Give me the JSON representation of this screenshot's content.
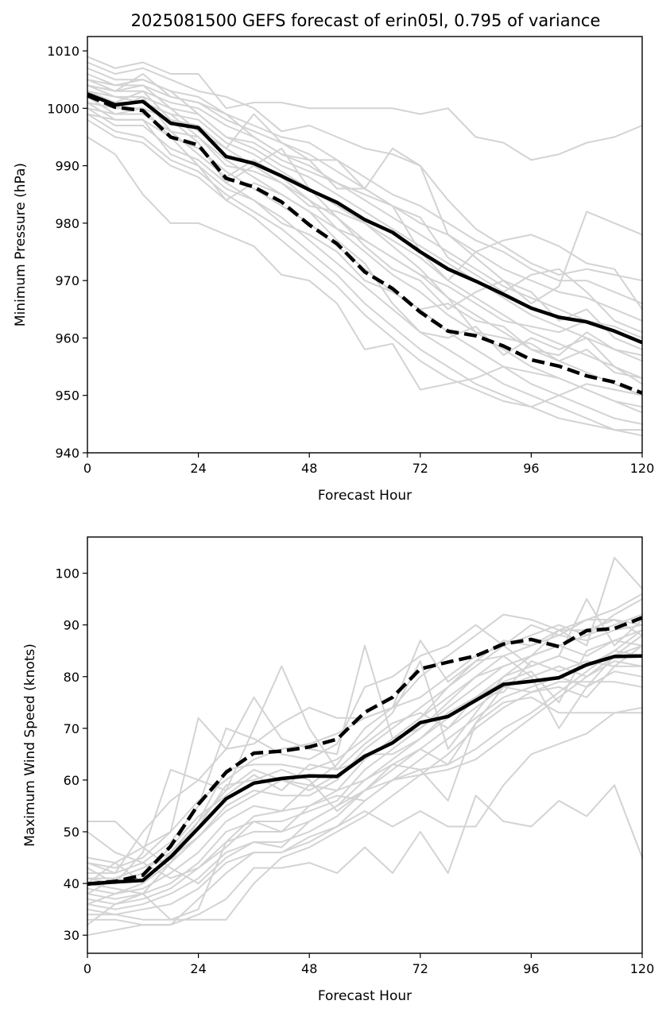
{
  "figure": {
    "title": "2025081500 GEFS forecast of erin05l, 0.795 of variance"
  },
  "colors": {
    "member": "#d3d3d3",
    "mean": "#000000",
    "frame": "#000000"
  },
  "chart_data": [
    {
      "type": "line",
      "title": "2025081500 GEFS forecast of erin05l, 0.795 of variance",
      "xlabel": "Forecast Hour",
      "ylabel": "Minimum Pressure (hPa)",
      "xlim": [
        0,
        120
      ],
      "ylim": [
        940,
        1012.5
      ],
      "x_ticks": [
        0,
        24,
        48,
        72,
        96,
        120
      ],
      "y_ticks": [
        940,
        950,
        960,
        970,
        980,
        990,
        1000,
        1010
      ],
      "grid": false,
      "legend": "none",
      "x": [
        0,
        6,
        12,
        18,
        24,
        30,
        36,
        42,
        48,
        54,
        60,
        66,
        72,
        78,
        84,
        90,
        96,
        102,
        108,
        114,
        120
      ],
      "mean_series": [
        {
          "style": "solid",
          "values": [
            1002.5,
            1000.6,
            1001.2,
            997.4,
            996.6,
            991.6,
            990.4,
            988.2,
            985.8,
            983.6,
            980.6,
            978.4,
            975.0,
            972.0,
            969.9,
            967.6,
            965.2,
            963.6,
            962.8,
            961.2,
            959.2
          ]
        },
        {
          "style": "dashed",
          "values": [
            1002.2,
            1000.2,
            999.6,
            995.0,
            993.6,
            987.8,
            986.3,
            983.7,
            979.7,
            976.4,
            971.5,
            968.6,
            964.5,
            961.2,
            960.4,
            958.6,
            956.2,
            955.1,
            953.4,
            952.3,
            950.4
          ]
        }
      ],
      "members": [
        [
          1009,
          1007,
          1008,
          1006,
          1006,
          1000,
          1001,
          1001,
          1000,
          1000,
          1000,
          1000,
          999,
          1000,
          995,
          994,
          991,
          992,
          994,
          995,
          997
        ],
        [
          1008,
          1006,
          1007,
          1005,
          1003,
          1002,
          1000,
          996,
          997,
          995,
          993,
          992,
          990,
          984,
          979,
          976,
          973,
          971,
          972,
          971,
          970
        ],
        [
          1007,
          1005,
          1005,
          1003,
          1002,
          999,
          997,
          995,
          994,
          991,
          988,
          985,
          983,
          980,
          977,
          975,
          972,
          970,
          970,
          968,
          966
        ],
        [
          1006,
          1004,
          1004,
          1002,
          1001,
          998,
          996,
          994,
          992,
          989,
          986,
          983,
          980,
          978,
          975,
          972,
          970,
          968,
          967,
          965,
          963
        ],
        [
          1005,
          1003,
          1003,
          1001,
          1000,
          997,
          995,
          992,
          990,
          987,
          984,
          981,
          978,
          975,
          972,
          969,
          967,
          965,
          963,
          961,
          959
        ],
        [
          1004,
          1002,
          1002,
          1000,
          999,
          995,
          993,
          990,
          988,
          985,
          982,
          979,
          976,
          973,
          970,
          967,
          964,
          962,
          960,
          958,
          956
        ],
        [
          1003,
          1001,
          1001,
          999,
          998,
          994,
          992,
          989,
          986,
          983,
          980,
          977,
          974,
          970,
          967,
          964,
          961,
          959,
          957,
          955,
          953
        ],
        [
          1003,
          1000,
          1000,
          998,
          997,
          993,
          990,
          987,
          984,
          981,
          977,
          974,
          971,
          967,
          964,
          961,
          958,
          956,
          954,
          952,
          950
        ],
        [
          1002,
          999,
          999,
          996,
          995,
          991,
          988,
          985,
          982,
          979,
          975,
          971,
          968,
          964,
          961,
          958,
          955,
          953,
          951,
          949,
          948
        ],
        [
          1001,
          998,
          998,
          995,
          993,
          989,
          986,
          983,
          980,
          976,
          972,
          968,
          965,
          961,
          958,
          955,
          952,
          950,
          948,
          946,
          945
        ],
        [
          1000,
          997,
          997,
          993,
          991,
          987,
          984,
          981,
          977,
          973,
          969,
          965,
          961,
          958,
          955,
          952,
          950,
          948,
          946,
          944,
          943
        ],
        [
          999,
          996,
          995,
          991,
          989,
          985,
          982,
          979,
          975,
          971,
          966,
          962,
          958,
          955,
          952,
          950,
          948,
          946,
          945,
          944,
          944
        ],
        [
          998,
          995,
          994,
          990,
          988,
          984,
          981,
          977,
          973,
          969,
          964,
          960,
          956,
          953,
          951,
          949,
          948,
          950,
          952,
          951,
          950
        ],
        [
          995,
          992,
          985,
          980,
          980,
          978,
          976,
          971,
          970,
          966,
          958,
          959,
          951,
          952,
          953,
          955,
          954,
          953,
          951,
          949,
          947
        ],
        [
          1004,
          1003,
          1006,
          1002,
          1001,
          999,
          995,
          992,
          991,
          991,
          986,
          993,
          990,
          978,
          974,
          970,
          966,
          969,
          982,
          980,
          978
        ],
        [
          1004,
          1003,
          1004,
          1000,
          996,
          993,
          999,
          994,
          991,
          986,
          986,
          983,
          975,
          970,
          975,
          977,
          978,
          976,
          973,
          972,
          965
        ],
        [
          1002,
          1001,
          1003,
          998,
          994,
          987,
          990,
          993,
          986,
          981,
          976,
          972,
          970,
          965,
          968,
          970,
          968,
          963,
          965,
          960,
          958
        ],
        [
          1000,
          999,
          1000,
          995,
          990,
          984,
          987,
          985,
          982,
          977,
          973,
          966,
          961,
          960,
          962,
          957,
          960,
          958,
          960,
          955,
          952
        ],
        [
          999,
          998,
          998,
          992,
          990,
          986,
          984,
          980,
          978,
          975,
          970,
          968,
          965,
          966,
          963,
          962,
          958,
          957,
          961,
          958,
          957
        ],
        [
          1001,
          1000,
          1002,
          996,
          992,
          988,
          991,
          988,
          984,
          979,
          977,
          974,
          971,
          969,
          966,
          963,
          962,
          961,
          963,
          962,
          960
        ],
        [
          1005,
          1004,
          1005,
          1003,
          999,
          995,
          994,
          991,
          989,
          987,
          985,
          983,
          981,
          974,
          971,
          968,
          971,
          972,
          968,
          963,
          961
        ],
        [
          1003,
          1002,
          1001,
          999,
          995,
          990,
          989,
          987,
          983,
          982,
          980,
          976,
          972,
          967,
          961,
          960,
          959,
          956,
          958,
          954,
          953
        ]
      ]
    },
    {
      "type": "line",
      "title": "",
      "xlabel": "Forecast Hour",
      "ylabel": "Maximum Wind Speed (knots)",
      "xlim": [
        0,
        120
      ],
      "ylim": [
        26.5,
        107
      ],
      "x_ticks": [
        0,
        24,
        48,
        72,
        96,
        120
      ],
      "y_ticks": [
        30,
        40,
        50,
        60,
        70,
        80,
        90,
        100
      ],
      "grid": false,
      "legend": "none",
      "x": [
        0,
        6,
        12,
        18,
        24,
        30,
        36,
        42,
        48,
        54,
        60,
        66,
        72,
        78,
        84,
        90,
        96,
        102,
        108,
        114,
        120
      ],
      "mean_series": [
        {
          "style": "solid",
          "values": [
            39.9,
            40.3,
            40.6,
            45.1,
            50.7,
            56.4,
            59.4,
            60.3,
            60.8,
            60.7,
            64.6,
            67.2,
            71.1,
            72.3,
            75.4,
            78.5,
            79.1,
            79.8,
            82.3,
            83.9,
            84.0
          ]
        },
        {
          "style": "dashed",
          "values": [
            39.9,
            40.4,
            41.6,
            47.2,
            55.3,
            61.5,
            65.2,
            65.6,
            66.4,
            67.9,
            73.1,
            76.0,
            81.5,
            82.8,
            84.0,
            86.3,
            87.2,
            85.8,
            88.9,
            89.3,
            91.4
          ]
        }
      ],
      "members": [
        [
          52,
          52,
          47,
          43,
          40,
          45,
          48,
          47,
          52,
          55,
          58,
          60,
          61,
          62,
          64,
          68,
          72,
          76,
          80,
          84,
          88
        ],
        [
          50,
          46,
          44,
          41,
          43,
          47,
          52,
          50,
          55,
          57,
          56,
          60,
          62,
          63,
          66,
          70,
          73,
          77,
          81,
          85,
          89
        ],
        [
          45,
          44,
          47,
          50,
          72,
          66,
          76,
          68,
          66,
          65,
          86,
          68,
          70,
          75,
          80,
          82,
          84,
          86,
          88,
          92,
          95
        ],
        [
          44,
          42,
          50,
          56,
          60,
          66,
          67,
          71,
          74,
          72,
          72,
          74,
          76,
          80,
          84,
          86,
          88,
          90,
          88,
          90,
          92
        ],
        [
          43,
          40,
          46,
          62,
          60,
          58,
          70,
          82,
          70,
          62,
          64,
          68,
          72,
          78,
          83,
          87,
          86,
          88,
          91,
          93,
          96
        ],
        [
          42,
          42,
          44,
          48,
          55,
          70,
          68,
          65,
          64,
          67,
          78,
          80,
          84,
          86,
          90,
          86,
          82,
          84,
          95,
          86,
          91
        ],
        [
          41,
          41,
          43,
          46,
          52,
          58,
          62,
          60,
          59,
          63,
          70,
          74,
          80,
          84,
          88,
          92,
          91,
          89,
          86,
          103,
          97
        ],
        [
          40,
          39,
          38,
          44,
          49,
          55,
          58,
          57,
          57,
          60,
          66,
          70,
          74,
          78,
          82,
          86,
          90,
          88,
          87,
          89,
          90
        ],
        [
          39,
          38,
          39,
          42,
          46,
          52,
          55,
          54,
          55,
          58,
          64,
          68,
          72,
          76,
          80,
          84,
          86,
          89,
          89,
          91,
          88
        ],
        [
          38,
          37,
          38,
          40,
          44,
          50,
          52,
          52,
          54,
          56,
          62,
          66,
          70,
          74,
          78,
          82,
          84,
          86,
          84,
          87,
          86
        ],
        [
          37,
          36,
          37,
          39,
          43,
          48,
          50,
          50,
          52,
          55,
          60,
          64,
          68,
          72,
          76,
          80,
          82,
          84,
          82,
          85,
          84
        ],
        [
          36,
          35,
          36,
          38,
          41,
          46,
          48,
          48,
          50,
          53,
          58,
          62,
          66,
          70,
          74,
          78,
          80,
          82,
          80,
          83,
          82
        ],
        [
          35,
          34,
          35,
          36,
          39,
          44,
          46,
          46,
          48,
          51,
          56,
          60,
          64,
          68,
          72,
          76,
          78,
          80,
          78,
          81,
          80
        ],
        [
          34,
          34,
          33,
          33,
          33,
          33,
          40,
          45,
          47,
          50,
          53,
          57,
          61,
          65,
          70,
          74,
          77,
          79,
          79,
          79,
          78
        ],
        [
          33,
          33,
          32,
          32,
          34,
          37,
          43,
          43,
          44,
          42,
          47,
          42,
          50,
          42,
          57,
          52,
          51,
          56,
          53,
          59,
          45
        ],
        [
          30,
          31,
          32,
          32,
          37,
          42,
          46,
          46,
          49,
          51,
          54,
          51,
          54,
          51,
          51,
          59,
          65,
          67,
          69,
          73,
          74
        ],
        [
          32,
          36,
          38,
          33,
          35,
          48,
          53,
          54,
          59,
          58,
          60,
          63,
          62,
          56,
          71,
          75,
          76,
          73,
          73,
          73,
          73
        ],
        [
          36,
          38,
          40,
          44,
          52,
          62,
          63,
          63,
          62,
          64,
          68,
          73,
          83,
          66,
          73,
          80,
          84,
          89,
          91,
          91,
          90
        ],
        [
          44,
          43,
          45,
          50,
          56,
          60,
          64,
          66,
          67,
          69,
          72,
          74,
          87,
          79,
          83,
          84,
          80,
          70,
          78,
          84,
          86
        ],
        [
          40,
          44,
          40,
          46,
          51,
          59,
          60,
          62,
          60,
          54,
          58,
          63,
          66,
          63,
          71,
          78,
          77,
          78,
          76,
          82,
          86
        ],
        [
          41,
          40,
          42,
          47,
          53,
          57,
          61,
          58,
          63,
          62,
          67,
          71,
          73,
          70,
          76,
          79,
          81,
          75,
          85,
          87,
          89
        ],
        [
          38,
          41,
          43,
          45,
          49,
          54,
          57,
          60,
          58,
          61,
          65,
          65,
          68,
          73,
          76,
          77,
          83,
          81,
          83,
          82,
          82
        ]
      ]
    }
  ]
}
